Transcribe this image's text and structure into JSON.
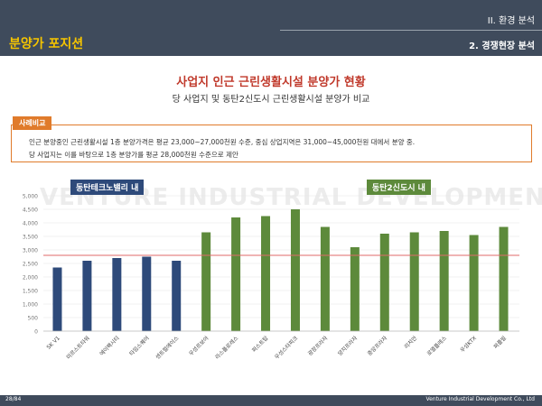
{
  "header": {
    "section": "II. 환경 분석",
    "subsection": "2. 경쟁현장 분석",
    "title": "분양가 포지션"
  },
  "main_title": "사업지 인근 근린생활시설 분양가 현황",
  "sub_title": "당 사업지 및 동탄2신도시 근린생활시설 분양가 비교",
  "case": {
    "tag": "사례비교",
    "line1": "인근 분양중인 근린생활시설 1층 분양가격은 평균 23,000~27,000천원 수준, 중심 상업지역은 31,000~45,000천원 대에서 분양 중.",
    "line2": "당 사업지는 이를 바탕으로 1층 분양가를 평균 28,000천원 수준으로 제안"
  },
  "watermark": "VENTURE INDUSTRIAL DEVELOPMENT",
  "footer": {
    "page": "28/84",
    "company": "Venture Industrial Development Co., Ltd"
  },
  "colors": {
    "header_bg": "#3f4b5c",
    "title_accent": "#f5c400",
    "group1": "#2e4a7a",
    "group2": "#5d8a3b",
    "reference_line": "#e06a6a",
    "case_border": "#e07b2b"
  },
  "chart_data": {
    "type": "bar",
    "categories": [
      "SK V1",
      "미르스트타워",
      "에이팩시티",
      "타임스퀘어",
      "센트럴에이스",
      "우성르보아",
      "라스플로레스",
      "퍼스트탑",
      "우성스타피크",
      "광장프라자",
      "양지프라자",
      "중앙프라자",
      "리치안",
      "로열플레스",
      "우성KTX",
      "퍼플빌"
    ],
    "values": [
      2350,
      2600,
      2700,
      2750,
      2600,
      3650,
      4200,
      4250,
      4500,
      3850,
      3100,
      3600,
      3650,
      3700,
      3550,
      3850
    ],
    "groups": [
      {
        "name": "동탄테크노밸리 내",
        "start": 0,
        "end": 4,
        "color": "#2e4a7a"
      },
      {
        "name": "동탄2신도시 내",
        "start": 5,
        "end": 15,
        "color": "#5d8a3b"
      }
    ],
    "reference_line": 2800,
    "ylim": [
      0,
      5000
    ],
    "yticks": [
      "0",
      "500",
      "1,000",
      "1,500",
      "2,000",
      "2,500",
      "3,000",
      "3,500",
      "4,000",
      "4,500",
      "5,000"
    ],
    "grid": true
  }
}
